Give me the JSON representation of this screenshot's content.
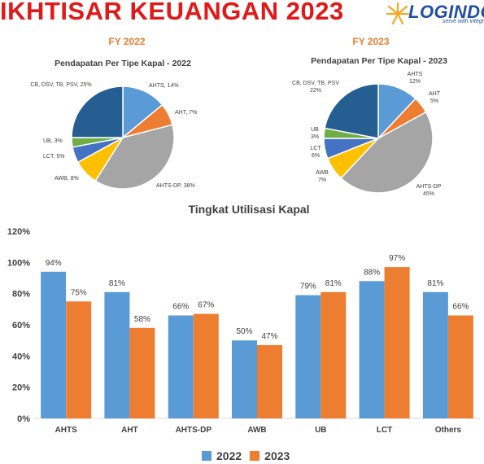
{
  "header": {
    "title": "IKHTISAR KEUANGAN 2023",
    "logo_text": "LOGINDO",
    "logo_tagline": "serve with integr"
  },
  "colors": {
    "title": "#e01919",
    "fy_label": "#ed7d31",
    "series_2022": "#5b9bd5",
    "series_2023": "#ed7d31"
  },
  "chart_data": [
    {
      "type": "pie",
      "panel_label": "FY 2022",
      "title": "Pendapatan Per Tipe Kapal - 2022",
      "slices": [
        {
          "name": "AHTS",
          "label": "AHTS, 14%",
          "value": 14,
          "color": "#5b9bd5"
        },
        {
          "name": "AHT",
          "label": "AHT, 7%",
          "value": 7,
          "color": "#ed7d31"
        },
        {
          "name": "AHTS-DP",
          "label": "AHTS-DP, 38%",
          "value": 38,
          "color": "#a5a5a5"
        },
        {
          "name": "AWB",
          "label": "AWB, 8%",
          "value": 8,
          "color": "#ffc000"
        },
        {
          "name": "LCT",
          "label": "LCT, 5%",
          "value": 5,
          "color": "#4472c4"
        },
        {
          "name": "UB",
          "label": "UB, 3%",
          "value": 3,
          "color": "#70ad47"
        },
        {
          "name": "CB, DSV, TB, PSV",
          "label": "CB, DSV, TB, PSV, 25%",
          "value": 25,
          "color": "#255e91"
        }
      ]
    },
    {
      "type": "pie",
      "panel_label": "FY 2023",
      "title": "Pendapatan Per Tipe Kapal - 2023",
      "slices": [
        {
          "name": "AHTS",
          "label": "AHTS 12%",
          "value": 12,
          "color": "#5b9bd5"
        },
        {
          "name": "AHT",
          "label": "AHT 5%",
          "value": 5,
          "color": "#ed7d31"
        },
        {
          "name": "AHTS-DP",
          "label": "AHTS-DP 45%",
          "value": 45,
          "color": "#a5a5a5"
        },
        {
          "name": "AWB",
          "label": "AWB 7%",
          "value": 7,
          "color": "#ffc000"
        },
        {
          "name": "LCT",
          "label": "LCT 6%",
          "value": 6,
          "color": "#4472c4"
        },
        {
          "name": "UB",
          "label": "UB 3%",
          "value": 3,
          "color": "#70ad47"
        },
        {
          "name": "CB, DSV, TB, PSV",
          "label": "CB, DSV, TB, PSV 22%",
          "value": 22,
          "color": "#255e91"
        }
      ]
    },
    {
      "type": "bar",
      "title": "Tingkat Utilisasi Kapal",
      "categories": [
        "AHTS",
        "AHT",
        "AHTS-DP",
        "AWB",
        "UB",
        "LCT",
        "Others"
      ],
      "series": [
        {
          "name": "2022",
          "values": [
            94,
            81,
            66,
            50,
            79,
            88,
            81
          ],
          "labels": [
            "94%",
            "81%",
            "66%",
            "50%",
            "79%",
            "88%",
            "81%"
          ],
          "color": "#5b9bd5"
        },
        {
          "name": "2023",
          "values": [
            75,
            58,
            67,
            47,
            81,
            97,
            66
          ],
          "labels": [
            "75%",
            "58%",
            "67%",
            "47%",
            "81%",
            "97%",
            "66%"
          ],
          "color": "#ed7d31"
        }
      ],
      "ylim": [
        0,
        120
      ],
      "yticks": [
        "0%",
        "20%",
        "40%",
        "60%",
        "80%",
        "100%",
        "120%"
      ],
      "ytick_values": [
        0,
        20,
        40,
        60,
        80,
        100,
        120
      ],
      "grid": false,
      "legend_position": "bottom"
    }
  ]
}
